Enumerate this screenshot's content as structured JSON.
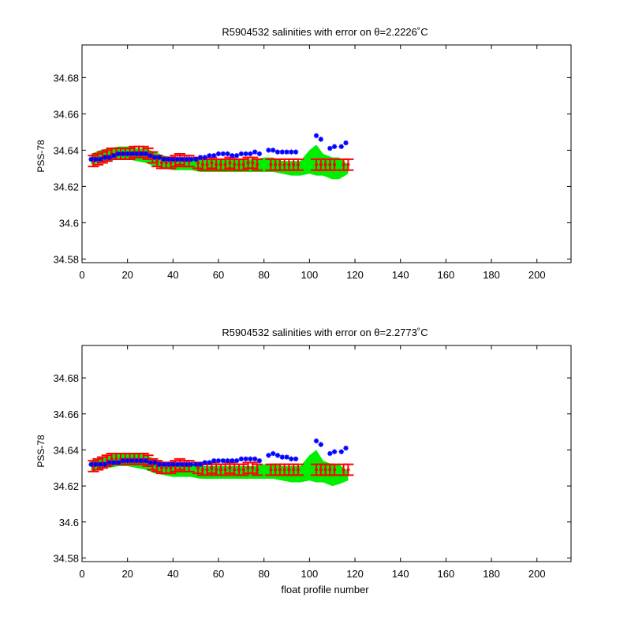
{
  "chart_data": [
    {
      "type": "scatter",
      "title": "R5904532 salinities with error on θ=2.2226˚C",
      "xlabel": "",
      "ylabel": "PSS-78",
      "xlim": [
        0,
        215
      ],
      "ylim": [
        34.578,
        34.698
      ],
      "xticks": [
        0,
        20,
        40,
        60,
        80,
        100,
        120,
        140,
        160,
        180,
        200
      ],
      "yticks": [
        34.58,
        34.6,
        34.62,
        34.64,
        34.66,
        34.68
      ],
      "ytick_labels": [
        "34.58",
        "34.6",
        "34.62",
        "34.64",
        "34.66",
        "34.68"
      ],
      "grid": false,
      "colors": {
        "error_band": "#00ee00",
        "calibrated": "#ff0000",
        "raw": "#0000ff"
      },
      "error_band": {
        "x": [
          4,
          8,
          12,
          16,
          20,
          24,
          28,
          32,
          36,
          40,
          44,
          48,
          52,
          56,
          60,
          64,
          68,
          72,
          76,
          80,
          84,
          88,
          92,
          96,
          100,
          103,
          106,
          110,
          113,
          117
        ],
        "upper": [
          34.638,
          34.64,
          34.641,
          34.642,
          34.642,
          34.641,
          34.641,
          34.639,
          34.637,
          34.636,
          34.636,
          34.636,
          34.635,
          34.635,
          34.635,
          34.635,
          34.635,
          34.635,
          34.635,
          34.636,
          34.636,
          34.634,
          34.634,
          34.634,
          34.64,
          34.643,
          34.638,
          34.636,
          34.636,
          34.632
        ],
        "lower": [
          34.632,
          34.633,
          34.634,
          34.635,
          34.635,
          34.634,
          34.633,
          34.631,
          34.63,
          34.629,
          34.629,
          34.629,
          34.628,
          34.628,
          34.628,
          34.628,
          34.628,
          34.628,
          34.628,
          34.628,
          34.628,
          34.627,
          34.626,
          34.626,
          34.627,
          34.626,
          34.626,
          34.624,
          34.624,
          34.627
        ]
      },
      "calibrated": {
        "x": [
          5,
          7,
          9,
          11,
          13,
          15,
          17,
          19,
          21,
          23,
          25,
          27,
          29,
          31,
          33,
          35,
          37,
          39,
          41,
          43,
          45,
          47,
          51,
          53,
          55,
          57,
          59,
          61,
          63,
          65,
          67,
          69,
          71,
          73,
          75,
          77,
          83,
          85,
          87,
          89,
          91,
          93,
          95,
          103,
          105,
          107,
          109,
          111,
          115,
          117
        ],
        "y": [
          34.634,
          34.635,
          34.636,
          34.637,
          34.638,
          34.638,
          34.638,
          34.638,
          34.638,
          34.639,
          34.639,
          34.639,
          34.638,
          34.636,
          34.634,
          34.633,
          34.633,
          34.633,
          34.634,
          34.635,
          34.634,
          34.634,
          34.633,
          34.632,
          34.632,
          34.633,
          34.632,
          34.632,
          34.632,
          34.633,
          34.632,
          34.632,
          34.632,
          34.633,
          34.633,
          34.632,
          34.632,
          34.632,
          34.632,
          34.632,
          34.632,
          34.632,
          34.632,
          34.632,
          34.632,
          34.632,
          34.632,
          34.632,
          34.632,
          34.632
        ],
        "err": [
          0.003,
          0.003,
          0.003,
          0.003,
          0.003,
          0.003,
          0.003,
          0.003,
          0.003,
          0.003,
          0.003,
          0.003,
          0.003,
          0.003,
          0.003,
          0.003,
          0.003,
          0.003,
          0.003,
          0.003,
          0.003,
          0.003,
          0.003,
          0.003,
          0.003,
          0.003,
          0.003,
          0.003,
          0.003,
          0.003,
          0.003,
          0.003,
          0.003,
          0.003,
          0.003,
          0.003,
          0.003,
          0.003,
          0.003,
          0.003,
          0.003,
          0.003,
          0.003,
          0.003,
          0.003,
          0.003,
          0.003,
          0.003,
          0.003,
          0.003
        ]
      },
      "raw": {
        "x": [
          4,
          6,
          8,
          10,
          12,
          14,
          16,
          18,
          20,
          22,
          24,
          26,
          28,
          30,
          32,
          34,
          36,
          38,
          40,
          42,
          44,
          46,
          48,
          50,
          52,
          54,
          56,
          58,
          60,
          62,
          64,
          66,
          68,
          70,
          72,
          74,
          76,
          78,
          82,
          84,
          86,
          88,
          90,
          92,
          94,
          103,
          105,
          109,
          111,
          114,
          116
        ],
        "y": [
          34.635,
          34.635,
          34.635,
          34.636,
          34.636,
          34.637,
          34.638,
          34.638,
          34.638,
          34.638,
          34.638,
          34.638,
          34.638,
          34.637,
          34.636,
          34.636,
          34.635,
          34.635,
          34.635,
          34.635,
          34.635,
          34.635,
          34.635,
          34.635,
          34.636,
          34.636,
          34.637,
          34.637,
          34.638,
          34.638,
          34.638,
          34.637,
          34.637,
          34.638,
          34.638,
          34.638,
          34.639,
          34.638,
          34.64,
          34.64,
          34.639,
          34.639,
          34.639,
          34.639,
          34.639,
          34.648,
          34.646,
          34.641,
          34.642,
          34.642,
          34.644
        ]
      }
    },
    {
      "type": "scatter",
      "title": "R5904532 salinities with error on θ=2.2773˚C",
      "xlabel": "float profile number",
      "ylabel": "PSS-78",
      "xlim": [
        0,
        215
      ],
      "ylim": [
        34.578,
        34.698
      ],
      "xticks": [
        0,
        20,
        40,
        60,
        80,
        100,
        120,
        140,
        160,
        180,
        200
      ],
      "yticks": [
        34.58,
        34.6,
        34.62,
        34.64,
        34.66,
        34.68
      ],
      "ytick_labels": [
        "34.58",
        "34.6",
        "34.62",
        "34.64",
        "34.66",
        "34.68"
      ],
      "grid": false,
      "colors": {
        "error_band": "#00ee00",
        "calibrated": "#ff0000",
        "raw": "#0000ff"
      },
      "error_band": {
        "x": [
          4,
          8,
          12,
          16,
          20,
          24,
          28,
          32,
          36,
          40,
          44,
          48,
          52,
          56,
          60,
          64,
          68,
          72,
          76,
          80,
          84,
          88,
          92,
          96,
          100,
          103,
          106,
          110,
          113,
          117
        ],
        "upper": [
          34.634,
          34.636,
          34.637,
          34.638,
          34.638,
          34.638,
          34.637,
          34.635,
          34.633,
          34.632,
          34.632,
          34.632,
          34.631,
          34.631,
          34.631,
          34.631,
          34.631,
          34.631,
          34.631,
          34.632,
          34.632,
          34.631,
          34.631,
          34.631,
          34.637,
          34.64,
          34.634,
          34.632,
          34.632,
          34.628
        ],
        "lower": [
          34.628,
          34.629,
          34.63,
          34.631,
          34.631,
          34.63,
          34.629,
          34.627,
          34.626,
          34.625,
          34.625,
          34.625,
          34.624,
          34.624,
          34.624,
          34.624,
          34.624,
          34.624,
          34.624,
          34.624,
          34.624,
          34.623,
          34.622,
          34.622,
          34.623,
          34.622,
          34.622,
          34.62,
          34.621,
          34.623
        ]
      },
      "calibrated": {
        "x": [
          5,
          7,
          9,
          11,
          13,
          15,
          17,
          19,
          21,
          23,
          25,
          27,
          29,
          31,
          33,
          35,
          37,
          39,
          41,
          43,
          45,
          47,
          51,
          53,
          55,
          57,
          59,
          61,
          63,
          65,
          67,
          69,
          71,
          73,
          75,
          77,
          83,
          85,
          87,
          89,
          91,
          93,
          95,
          103,
          105,
          107,
          109,
          111,
          115,
          117
        ],
        "y": [
          34.631,
          34.632,
          34.633,
          34.634,
          34.635,
          34.635,
          34.635,
          34.635,
          34.635,
          34.635,
          34.635,
          34.635,
          34.634,
          34.632,
          34.631,
          34.63,
          34.63,
          34.63,
          34.631,
          34.632,
          34.631,
          34.631,
          34.63,
          34.629,
          34.629,
          34.63,
          34.629,
          34.629,
          34.629,
          34.63,
          34.629,
          34.629,
          34.629,
          34.63,
          34.63,
          34.629,
          34.629,
          34.629,
          34.629,
          34.629,
          34.629,
          34.629,
          34.629,
          34.629,
          34.629,
          34.629,
          34.629,
          34.629,
          34.629,
          34.629
        ],
        "err": [
          0.003,
          0.003,
          0.003,
          0.003,
          0.003,
          0.003,
          0.003,
          0.003,
          0.003,
          0.003,
          0.003,
          0.003,
          0.003,
          0.003,
          0.003,
          0.003,
          0.003,
          0.003,
          0.003,
          0.003,
          0.003,
          0.003,
          0.003,
          0.003,
          0.003,
          0.003,
          0.003,
          0.003,
          0.003,
          0.003,
          0.003,
          0.003,
          0.003,
          0.003,
          0.003,
          0.003,
          0.003,
          0.003,
          0.003,
          0.003,
          0.003,
          0.003,
          0.003,
          0.003,
          0.003,
          0.003,
          0.003,
          0.003,
          0.003,
          0.003
        ]
      },
      "raw": {
        "x": [
          4,
          6,
          8,
          10,
          12,
          14,
          16,
          18,
          20,
          22,
          24,
          26,
          28,
          30,
          32,
          34,
          36,
          38,
          40,
          42,
          44,
          46,
          48,
          50,
          52,
          54,
          56,
          58,
          60,
          62,
          64,
          66,
          68,
          70,
          72,
          74,
          76,
          78,
          82,
          84,
          86,
          88,
          90,
          92,
          94,
          103,
          105,
          109,
          111,
          114,
          116
        ],
        "y": [
          34.632,
          34.632,
          34.632,
          34.632,
          34.633,
          34.633,
          34.633,
          34.634,
          34.634,
          34.634,
          34.634,
          34.634,
          34.634,
          34.633,
          34.633,
          34.632,
          34.632,
          34.632,
          34.632,
          34.632,
          34.632,
          34.632,
          34.632,
          34.632,
          34.632,
          34.633,
          34.633,
          34.634,
          34.634,
          34.634,
          34.634,
          34.634,
          34.634,
          34.635,
          34.635,
          34.635,
          34.635,
          34.634,
          34.637,
          34.638,
          34.637,
          34.636,
          34.636,
          34.635,
          34.635,
          34.645,
          34.643,
          34.638,
          34.639,
          34.639,
          34.641
        ]
      }
    }
  ]
}
